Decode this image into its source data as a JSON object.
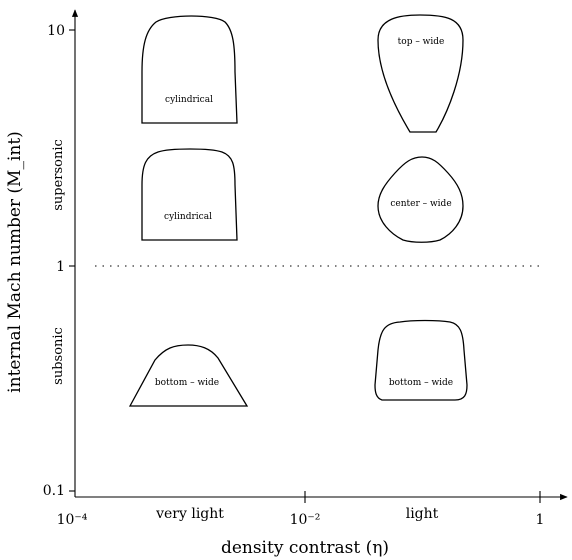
{
  "diagram": {
    "x_axis": {
      "title": "density contrast (η)",
      "ticks": [
        "10⁻⁴",
        "10⁻²",
        "1"
      ],
      "categories": [
        "very light",
        "light"
      ],
      "scale": "log"
    },
    "y_axis": {
      "title": "internal Mach number (M_int)",
      "ticks": [
        "10",
        "1",
        "0.1"
      ],
      "regimes": [
        "supersonic",
        "subsonic"
      ],
      "scale": "log"
    },
    "shapes": [
      {
        "label": "cylindrical",
        "column": "very light",
        "regime": "supersonic"
      },
      {
        "label": "top – wide",
        "column": "light",
        "regime": "supersonic"
      },
      {
        "label": "cylindrical",
        "column": "very light",
        "regime": "supersonic"
      },
      {
        "label": "center – wide",
        "column": "light",
        "regime": "supersonic"
      },
      {
        "label": "bottom – wide",
        "column": "very light",
        "regime": "subsonic"
      },
      {
        "label": "bottom – wide",
        "column": "light",
        "regime": "subsonic"
      }
    ]
  }
}
